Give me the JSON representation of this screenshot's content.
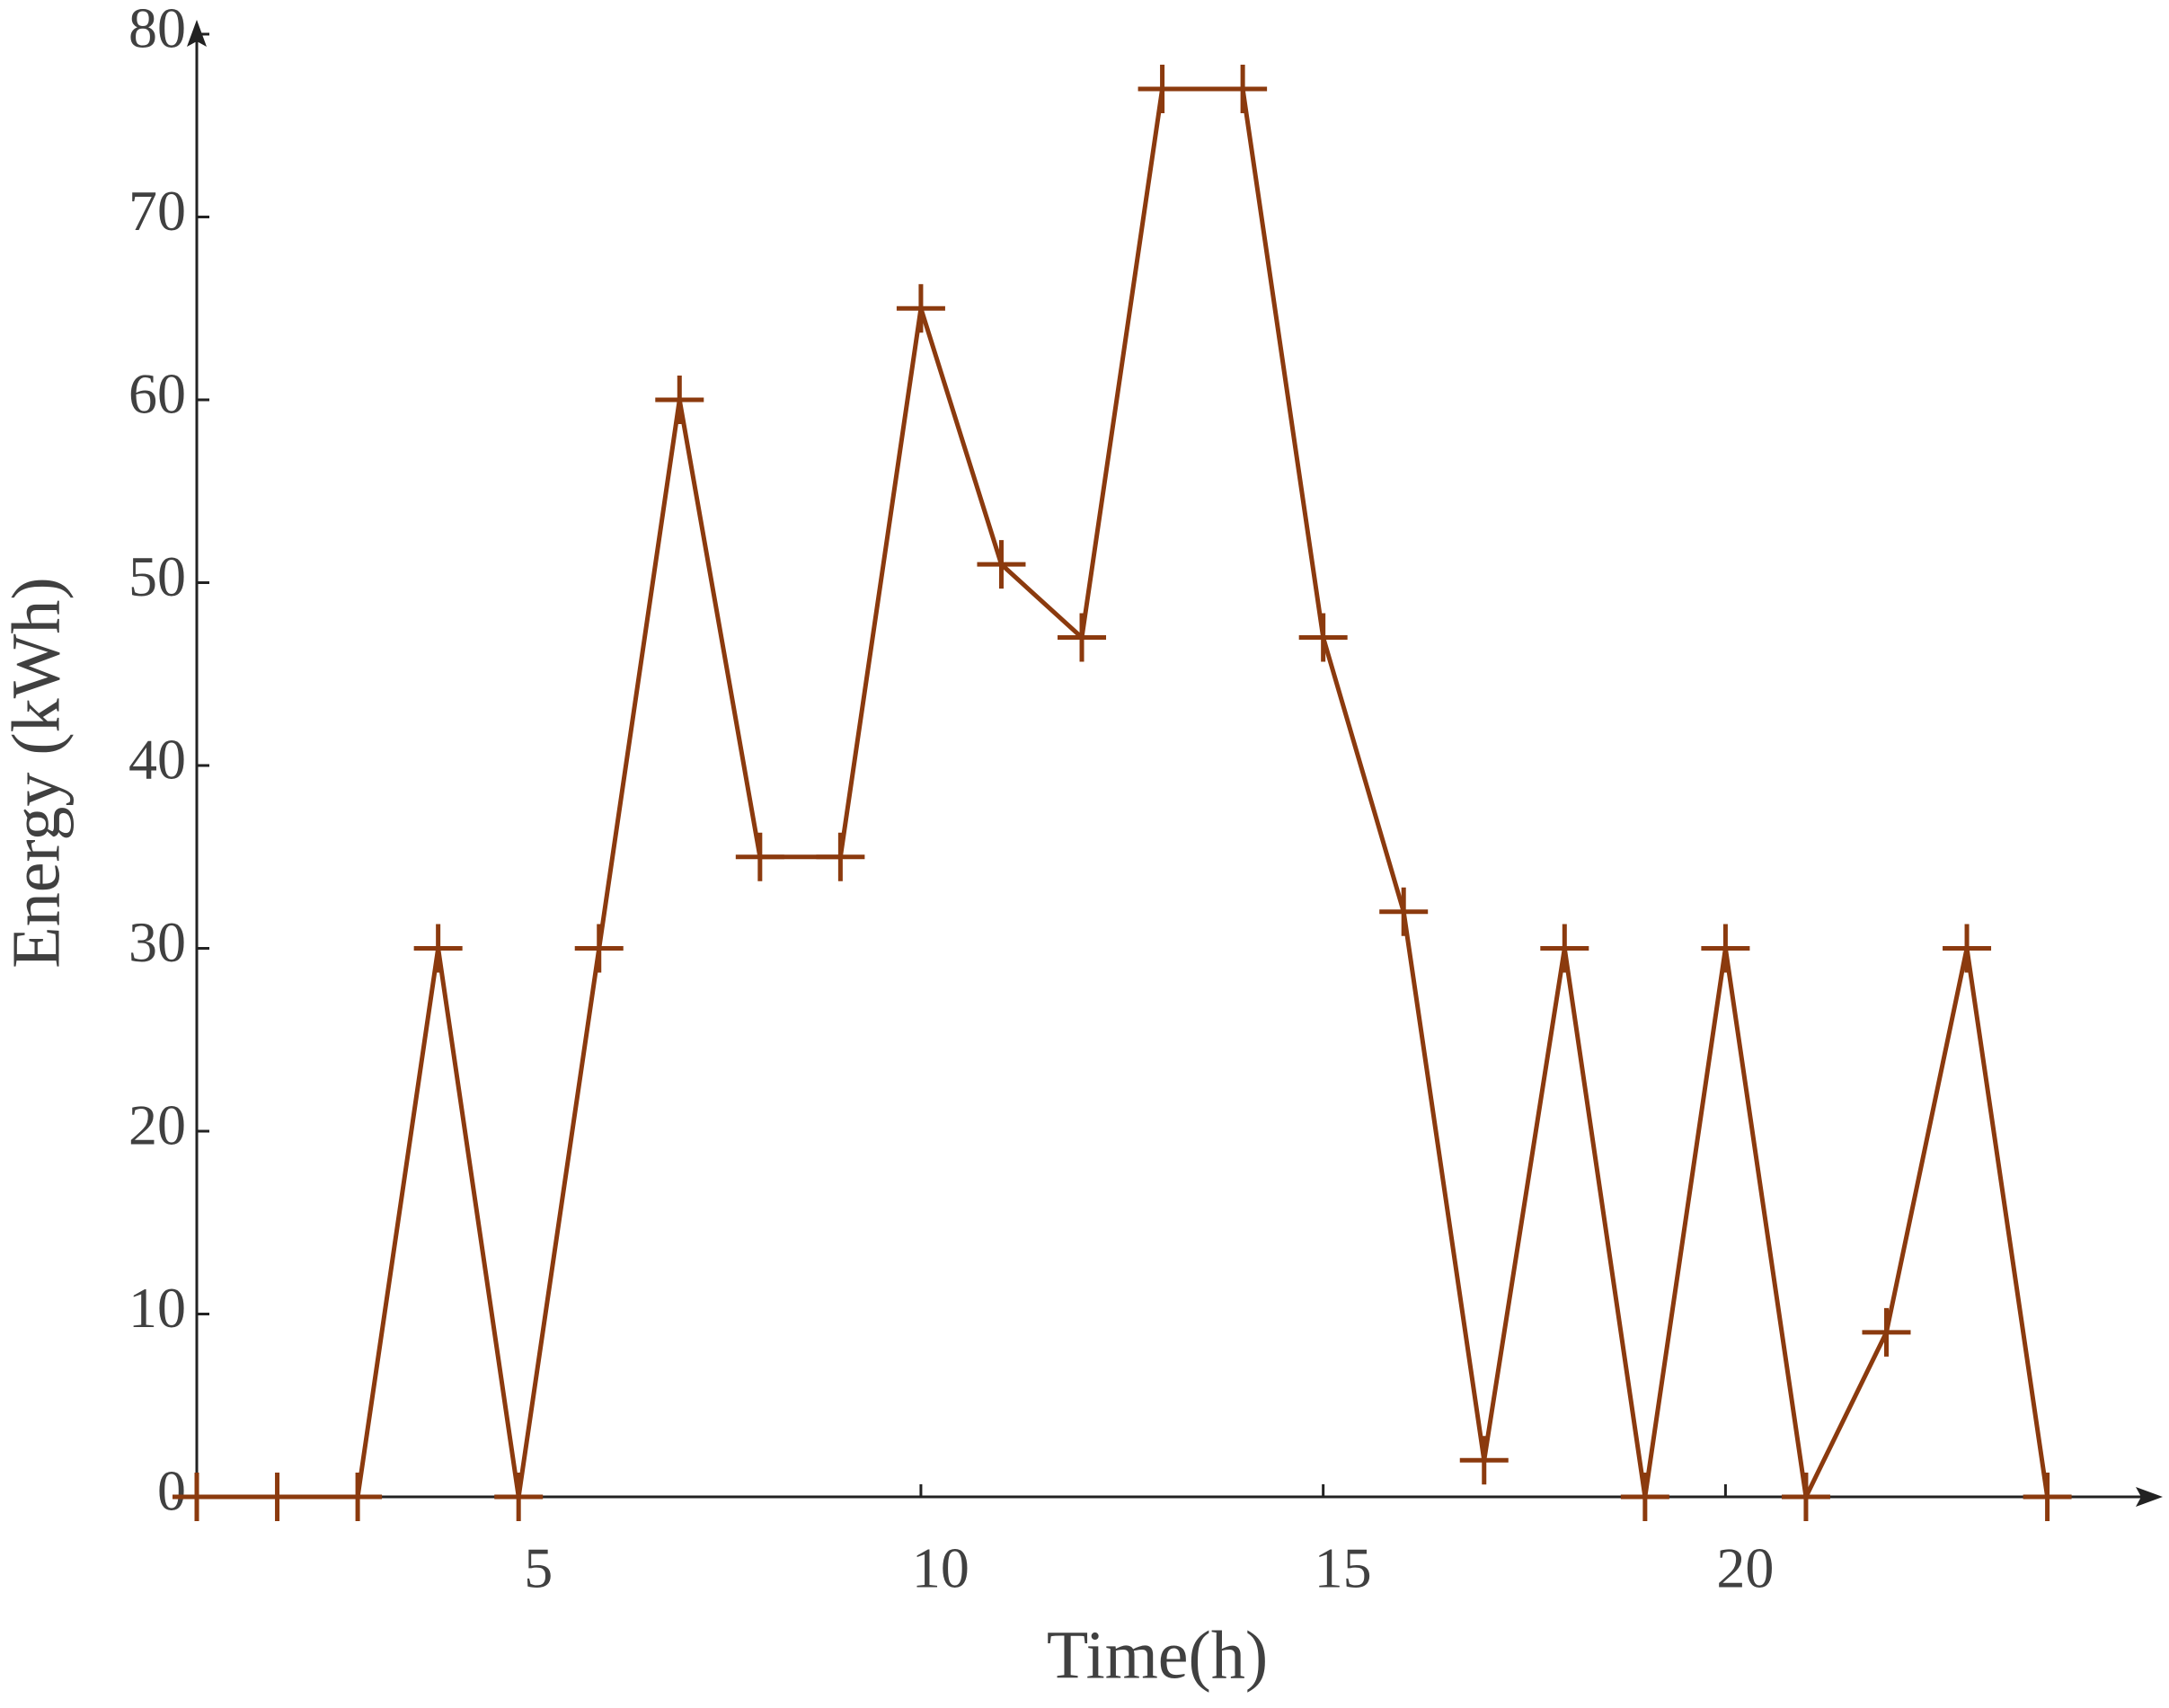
{
  "chart_data": {
    "type": "line",
    "x_label": "Time(h)",
    "y_label": "Energy (kWh)",
    "x": [
      1,
      2,
      3,
      4,
      5,
      6,
      7,
      8,
      9,
      10,
      11,
      12,
      13,
      14,
      15,
      16,
      17,
      18,
      19,
      20,
      21,
      22,
      23,
      24
    ],
    "values": [
      0,
      0,
      0,
      30,
      0,
      30,
      60,
      35,
      35,
      65,
      51,
      47,
      77,
      77,
      47,
      32,
      2,
      30,
      0,
      30,
      0,
      9,
      30,
      0
    ],
    "color": "#8b3a0e",
    "xlim": [
      1,
      25.3
    ],
    "xticks": [
      5,
      10,
      15,
      20
    ],
    "ylim": [
      0,
      80
    ],
    "yticks": [
      0,
      10,
      20,
      30,
      40,
      50,
      60,
      70,
      80
    ],
    "grid": false,
    "markers": "+"
  }
}
